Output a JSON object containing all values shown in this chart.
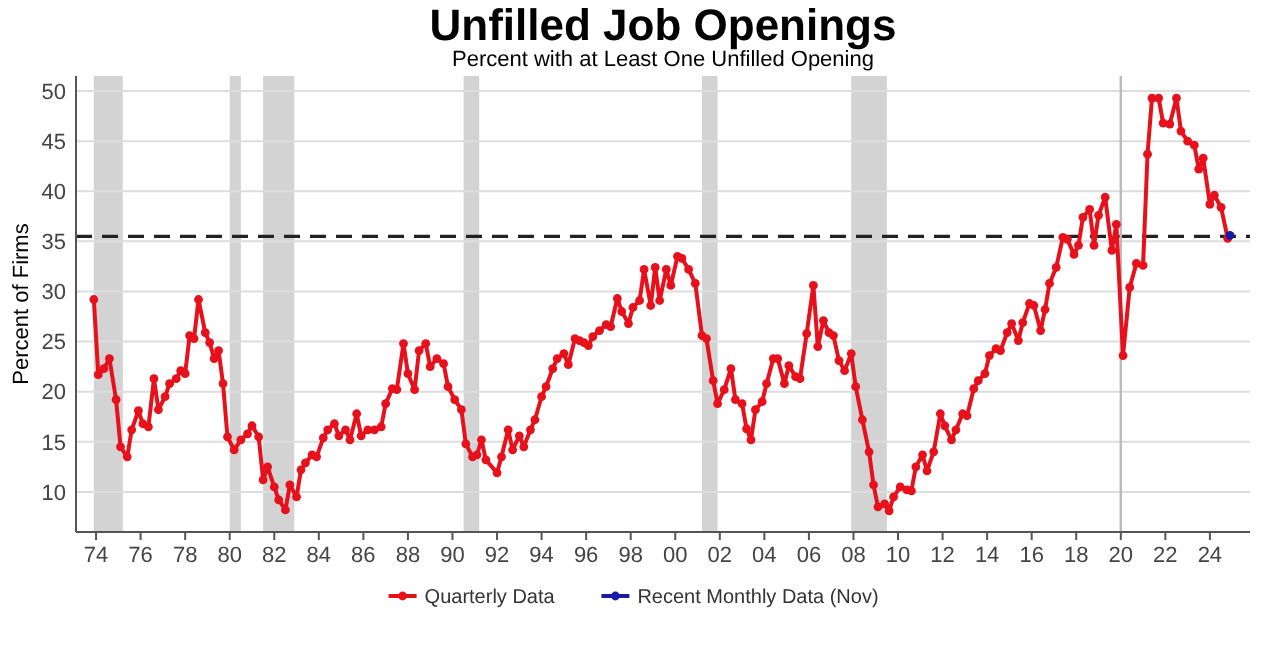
{
  "chart_data": {
    "type": "line",
    "title": "Unfilled Job Openings",
    "subtitle": "Percent with at Least One Unfilled Opening",
    "ylabel": "Percent of Firms",
    "xlim": [
      1973.1,
      2025.8
    ],
    "xticks": [
      {
        "value": 1974,
        "label": "74"
      },
      {
        "value": 1976,
        "label": "76"
      },
      {
        "value": 1978,
        "label": "78"
      },
      {
        "value": 1980,
        "label": "80"
      },
      {
        "value": 1982,
        "label": "82"
      },
      {
        "value": 1984,
        "label": "84"
      },
      {
        "value": 1986,
        "label": "86"
      },
      {
        "value": 1988,
        "label": "88"
      },
      {
        "value": 1990,
        "label": "90"
      },
      {
        "value": 1992,
        "label": "92"
      },
      {
        "value": 1994,
        "label": "94"
      },
      {
        "value": 1996,
        "label": "96"
      },
      {
        "value": 1998,
        "label": "98"
      },
      {
        "value": 2000,
        "label": "00"
      },
      {
        "value": 2002,
        "label": "02"
      },
      {
        "value": 2004,
        "label": "04"
      },
      {
        "value": 2006,
        "label": "06"
      },
      {
        "value": 2008,
        "label": "08"
      },
      {
        "value": 2010,
        "label": "10"
      },
      {
        "value": 2012,
        "label": "12"
      },
      {
        "value": 2014,
        "label": "14"
      },
      {
        "value": 2016,
        "label": "16"
      },
      {
        "value": 2018,
        "label": "18"
      },
      {
        "value": 2020,
        "label": "20"
      },
      {
        "value": 2022,
        "label": "22"
      },
      {
        "value": 2024,
        "label": "24"
      }
    ],
    "ylim": [
      6,
      51.5
    ],
    "yticks": [
      10,
      15,
      20,
      25,
      30,
      35,
      40,
      45,
      50
    ],
    "grid": "y",
    "legend": "bottom",
    "marker": "circle",
    "line_style": "solid",
    "bands": [
      {
        "axis": "x",
        "from": 1973.9,
        "to": 1975.2,
        "color": "#d3d3d3"
      },
      {
        "axis": "x",
        "from": 1980.0,
        "to": 1980.5,
        "color": "#d3d3d3"
      },
      {
        "axis": "x",
        "from": 1981.5,
        "to": 1982.9,
        "color": "#d3d3d3"
      },
      {
        "axis": "x",
        "from": 1990.5,
        "to": 1991.2,
        "color": "#d3d3d3"
      },
      {
        "axis": "x",
        "from": 2001.2,
        "to": 2001.9,
        "color": "#d3d3d3"
      },
      {
        "axis": "x",
        "from": 2007.9,
        "to": 2009.5,
        "color": "#d3d3d3"
      }
    ],
    "ref_lines": [
      {
        "axis": "y",
        "value": 35.5,
        "color": "#222222",
        "line_style": "dashed"
      },
      {
        "axis": "x",
        "value": 2020,
        "color": "#bbbbbb",
        "line_style": "solid"
      }
    ],
    "series": [
      {
        "name": "Quarterly Data",
        "color": "#e8101a",
        "x": [
          1973.9,
          1974.1,
          1974.35,
          1974.6,
          1974.9,
          1975.1,
          1975.4,
          1975.6,
          1975.9,
          1976.1,
          1976.35,
          1976.6,
          1976.8,
          1977.1,
          1977.3,
          1977.6,
          1977.8,
          1978.0,
          1978.2,
          1978.4,
          1978.6,
          1978.9,
          1979.1,
          1979.3,
          1979.5,
          1979.7,
          1979.9,
          1980.2,
          1980.5,
          1980.8,
          1981.0,
          1981.3,
          1981.5,
          1981.7,
          1982.0,
          1982.2,
          1982.5,
          1982.7,
          1983.0,
          1983.2,
          1983.4,
          1983.7,
          1983.9,
          1984.2,
          1984.4,
          1984.7,
          1984.9,
          1985.2,
          1985.4,
          1985.7,
          1985.9,
          1986.2,
          1986.5,
          1986.8,
          1987.0,
          1987.3,
          1987.5,
          1987.8,
          1988.0,
          1988.3,
          1988.5,
          1988.8,
          1989.0,
          1989.3,
          1989.6,
          1989.8,
          1990.1,
          1990.4,
          1990.6,
          1990.9,
          1991.1,
          1991.3,
          1991.5,
          1992.0,
          1992.2,
          1992.5,
          1992.7,
          1993.0,
          1993.2,
          1993.5,
          1993.7,
          1994.0,
          1994.2,
          1994.5,
          1994.7,
          1995.0,
          1995.2,
          1995.5,
          1995.7,
          1995.9,
          1996.1,
          1996.3,
          1996.6,
          1996.9,
          1997.1,
          1997.4,
          1997.6,
          1997.9,
          1998.1,
          1998.4,
          1998.6,
          1998.9,
          1999.1,
          1999.3,
          1999.6,
          1999.8,
          2000.1,
          2000.3,
          2000.6,
          2000.9,
          2001.2,
          2001.4,
          2001.7,
          2001.9,
          2002.2,
          2002.5,
          2002.7,
          2003.0,
          2003.2,
          2003.4,
          2003.6,
          2003.9,
          2004.1,
          2004.4,
          2004.6,
          2004.9,
          2005.1,
          2005.4,
          2005.6,
          2005.9,
          2006.2,
          2006.4,
          2006.65,
          2006.9,
          2007.1,
          2007.35,
          2007.6,
          2007.9,
          2008.1,
          2008.4,
          2008.7,
          2008.9,
          2009.1,
          2009.4,
          2009.6,
          2009.8,
          2010.1,
          2010.4,
          2010.6,
          2010.8,
          2011.1,
          2011.3,
          2011.6,
          2011.9,
          2012.1,
          2012.4,
          2012.6,
          2012.9,
          2013.1,
          2013.4,
          2013.6,
          2013.9,
          2014.1,
          2014.4,
          2014.6,
          2014.9,
          2015.1,
          2015.4,
          2015.6,
          2015.9,
          2016.1,
          2016.4,
          2016.6,
          2016.8,
          2017.1,
          2017.4,
          2017.6,
          2017.9,
          2018.1,
          2018.3,
          2018.6,
          2018.8,
          2019.0,
          2019.3,
          2019.6,
          2019.8,
          2020.1,
          2020.4,
          2020.7,
          2021.0,
          2021.2,
          2021.4,
          2021.7,
          2021.9,
          2022.2,
          2022.5,
          2022.7,
          2023.0,
          2023.3,
          2023.5,
          2023.7,
          2024.0,
          2024.2,
          2024.5,
          2024.8
        ],
        "values": [
          29.2,
          21.7,
          22.3,
          23.3,
          19.2,
          14.5,
          13.5,
          16.2,
          18.1,
          16.8,
          16.5,
          21.3,
          18.2,
          19.5,
          20.8,
          21.3,
          22.1,
          21.8,
          25.6,
          25.3,
          29.2,
          25.9,
          24.9,
          23.3,
          24.1,
          20.8,
          15.5,
          14.2,
          15.2,
          15.8,
          16.6,
          15.5,
          11.2,
          12.5,
          10.5,
          9.2,
          8.2,
          10.7,
          9.5,
          12.2,
          12.9,
          13.7,
          13.5,
          15.4,
          16.2,
          16.8,
          15.6,
          16.2,
          15.2,
          17.8,
          15.6,
          16.2,
          16.2,
          16.5,
          18.8,
          20.3,
          20.2,
          24.8,
          21.8,
          20.2,
          24.1,
          24.8,
          22.5,
          23.3,
          22.8,
          20.5,
          19.2,
          18.2,
          14.8,
          13.5,
          13.7,
          15.2,
          13.2,
          11.9,
          13.5,
          16.2,
          14.2,
          15.6,
          14.5,
          16.2,
          17.2,
          19.5,
          20.5,
          22.3,
          23.3,
          23.8,
          22.7,
          25.3,
          25.1,
          24.9,
          24.6,
          25.5,
          26.1,
          26.7,
          26.5,
          29.3,
          28.0,
          26.8,
          28.4,
          29.1,
          32.2,
          28.6,
          32.4,
          29.1,
          32.2,
          30.6,
          33.5,
          33.3,
          32.2,
          30.8,
          25.6,
          25.3,
          21.1,
          18.8,
          20.2,
          22.3,
          19.2,
          18.8,
          16.3,
          15.2,
          18.2,
          19.0,
          20.8,
          23.3,
          23.3,
          20.8,
          22.6,
          21.5,
          21.3,
          25.8,
          30.6,
          24.5,
          27.1,
          25.9,
          25.6,
          23.1,
          22.1,
          23.8,
          20.5,
          17.2,
          14.0,
          10.7,
          8.5,
          8.8,
          8.1,
          9.5,
          10.5,
          10.2,
          10.1,
          12.5,
          13.7,
          12.1,
          14.0,
          17.8,
          16.6,
          15.2,
          16.2,
          17.8,
          17.6,
          20.3,
          21.1,
          21.8,
          23.6,
          24.3,
          24.1,
          25.9,
          26.8,
          25.1,
          26.9,
          28.8,
          28.6,
          26.1,
          28.2,
          30.8,
          32.4,
          35.4,
          35.2,
          33.7,
          34.6,
          37.4,
          38.2,
          34.6,
          37.6,
          39.4,
          34.1,
          36.7,
          23.6,
          30.4,
          32.8,
          32.6,
          43.7,
          49.3,
          49.3,
          46.8,
          46.7,
          49.3,
          46.0,
          45.0,
          44.6,
          42.2,
          43.3,
          38.7,
          39.6,
          38.4,
          35.3
        ]
      },
      {
        "name": "Recent Monthly Data (Nov)",
        "color": "#1a1aa8",
        "x": [
          2024.9
        ],
        "values": [
          35.6
        ]
      }
    ]
  }
}
